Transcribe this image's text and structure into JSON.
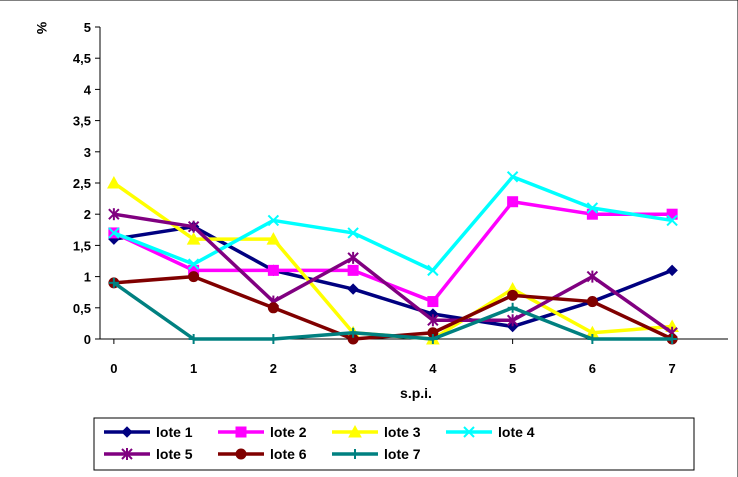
{
  "chart_data": {
    "type": "line",
    "title": "",
    "xlabel": "s.p.i.",
    "ylabel": "%",
    "categories": [
      "0",
      "1",
      "2",
      "3",
      "4",
      "5",
      "6",
      "7"
    ],
    "x": [
      0,
      1,
      2,
      3,
      4,
      5,
      6,
      7
    ],
    "ylim": [
      0,
      5
    ],
    "yticks": [
      "0",
      "0,5",
      "1",
      "1,5",
      "2",
      "2,5",
      "3",
      "3,5",
      "4",
      "4,5",
      "5"
    ],
    "grid": false,
    "legend_position": "bottom",
    "series": [
      {
        "name": "lote 1",
        "color": "#000080",
        "marker": "diamond",
        "values": [
          1.6,
          1.8,
          1.1,
          0.8,
          0.4,
          0.2,
          0.6,
          1.1
        ]
      },
      {
        "name": "lote 2",
        "color": "#FF00FF",
        "marker": "square",
        "values": [
          1.7,
          1.1,
          1.1,
          1.1,
          0.6,
          2.2,
          2.0,
          2.0
        ]
      },
      {
        "name": "lote 3",
        "color": "#FFFF00",
        "marker": "triangle",
        "values": [
          2.5,
          1.6,
          1.6,
          0.1,
          0.0,
          0.8,
          0.1,
          0.2
        ]
      },
      {
        "name": "lote 4",
        "color": "#00FFFF",
        "marker": "x",
        "values": [
          1.7,
          1.2,
          1.9,
          1.7,
          1.1,
          2.6,
          2.1,
          1.9
        ]
      },
      {
        "name": "lote 5",
        "color": "#800080",
        "marker": "star",
        "values": [
          2.0,
          1.8,
          0.6,
          1.3,
          0.3,
          0.3,
          1.0,
          0.1
        ]
      },
      {
        "name": "lote 6",
        "color": "#800000",
        "marker": "circle",
        "values": [
          0.9,
          1.0,
          0.5,
          0.0,
          0.1,
          0.7,
          0.6,
          0.0
        ]
      },
      {
        "name": "lote 7",
        "color": "#008080",
        "marker": "plus",
        "values": [
          0.9,
          0.0,
          0.0,
          0.1,
          0.0,
          0.5,
          0.0,
          0.0
        ]
      }
    ]
  }
}
